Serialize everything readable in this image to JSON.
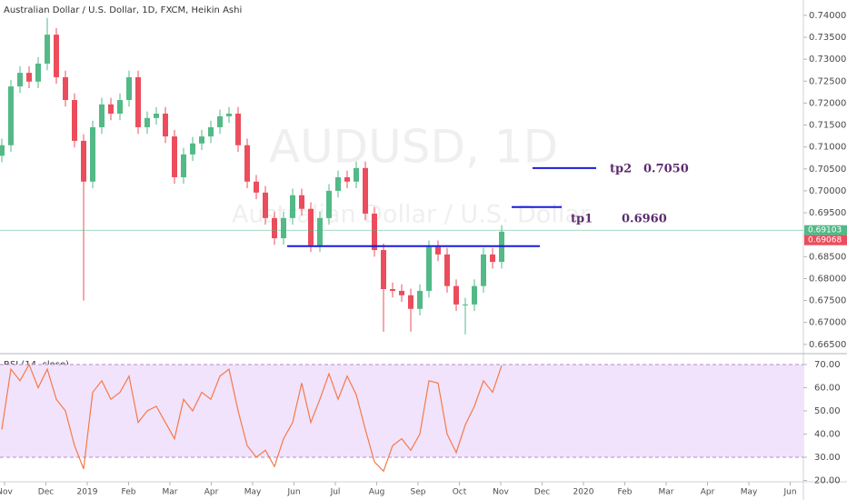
{
  "chart_data": [
    {
      "type": "candlestick",
      "title": "Australian Dollar / U.S. Dollar, 1D, FXCM, Heikin Ashi",
      "watermark": "AUDUSD, 1D",
      "watermark_subtitle": "Australian Dollar / U.S. Dollar",
      "up_color": "#53b987",
      "down_color": "#eb4d5c",
      "ylim": [
        0.6631,
        0.7435
      ],
      "yticks": [
        {
          "value": 0.665,
          "label": "0.66500"
        },
        {
          "value": 0.67,
          "label": "0.67000"
        },
        {
          "value": 0.675,
          "label": "0.67500"
        },
        {
          "value": 0.68,
          "label": "0.68000"
        },
        {
          "value": 0.685,
          "label": "0.68500"
        },
        {
          "value": 0.69,
          "label": "0.69000"
        },
        {
          "value": 0.695,
          "label": "0.69500"
        },
        {
          "value": 0.7,
          "label": "0.70000"
        },
        {
          "value": 0.705,
          "label": "0.70500"
        },
        {
          "value": 0.71,
          "label": "0.71000"
        },
        {
          "value": 0.715,
          "label": "0.71500"
        },
        {
          "value": 0.72,
          "label": "0.72000"
        },
        {
          "value": 0.725,
          "label": "0.72500"
        },
        {
          "value": 0.73,
          "label": "0.73000"
        },
        {
          "value": 0.735,
          "label": "0.73500"
        },
        {
          "value": 0.74,
          "label": "0.74000"
        }
      ],
      "open": [
        0.708,
        0.7104,
        0.7238,
        0.7269,
        0.7249,
        0.729,
        0.7356,
        0.7259,
        0.7207,
        0.7114,
        0.7021,
        0.7145,
        0.7197,
        0.7176,
        0.7207,
        0.7259,
        0.7145,
        0.7166,
        0.7176,
        0.7124,
        0.7031,
        0.7083,
        0.7108,
        0.7124,
        0.7145,
        0.717,
        0.7176,
        0.7104,
        0.7021,
        0.6996,
        0.6938,
        0.6892,
        0.6938,
        0.699,
        0.6959,
        0.6876,
        0.6938,
        0.7,
        0.7031,
        0.7021,
        0.7052,
        0.6948,
        0.6865,
        0.6776,
        0.6772,
        0.6762,
        0.6731,
        0.6772,
        0.6872,
        0.6855,
        0.6783,
        0.6741,
        0.6741,
        0.6783,
        0.6855,
        0.6838
      ],
      "high": [
        0.7119,
        0.7253,
        0.7284,
        0.7284,
        0.7305,
        0.7394,
        0.7371,
        0.7274,
        0.7222,
        0.7129,
        0.716,
        0.7212,
        0.7212,
        0.7222,
        0.7274,
        0.7274,
        0.7181,
        0.7191,
        0.7191,
        0.7139,
        0.7098,
        0.7123,
        0.7139,
        0.716,
        0.7185,
        0.7191,
        0.7191,
        0.7119,
        0.7036,
        0.7011,
        0.6953,
        0.6953,
        0.7005,
        0.7005,
        0.6974,
        0.6953,
        0.7015,
        0.7046,
        0.7046,
        0.7067,
        0.7067,
        0.6963,
        0.688,
        0.6791,
        0.6787,
        0.6777,
        0.6787,
        0.6887,
        0.6887,
        0.687,
        0.6798,
        0.6756,
        0.6798,
        0.687,
        0.687,
        0.6922
      ],
      "low": [
        0.7065,
        0.7089,
        0.7223,
        0.7234,
        0.7234,
        0.7275,
        0.7244,
        0.7192,
        0.7099,
        0.675,
        0.7006,
        0.713,
        0.7161,
        0.7161,
        0.7192,
        0.713,
        0.713,
        0.7151,
        0.7109,
        0.7016,
        0.7016,
        0.7068,
        0.7093,
        0.7109,
        0.713,
        0.7155,
        0.7089,
        0.7006,
        0.6981,
        0.6923,
        0.6877,
        0.6877,
        0.6923,
        0.6944,
        0.6861,
        0.6861,
        0.6923,
        0.6985,
        0.7006,
        0.7006,
        0.6933,
        0.685,
        0.6679,
        0.6757,
        0.6747,
        0.6679,
        0.6716,
        0.6757,
        0.684,
        0.6768,
        0.6726,
        0.6673,
        0.6726,
        0.6768,
        0.6823,
        0.6823
      ],
      "close": [
        0.7104,
        0.7238,
        0.7269,
        0.7249,
        0.729,
        0.7356,
        0.7259,
        0.7207,
        0.7114,
        0.7021,
        0.7145,
        0.7197,
        0.7176,
        0.7207,
        0.7259,
        0.7145,
        0.7166,
        0.7176,
        0.7124,
        0.7031,
        0.7083,
        0.7108,
        0.7124,
        0.7145,
        0.717,
        0.7176,
        0.7104,
        0.7021,
        0.6996,
        0.6938,
        0.6892,
        0.6938,
        0.699,
        0.6959,
        0.6876,
        0.6938,
        0.7,
        0.7031,
        0.7021,
        0.7052,
        0.6948,
        0.6865,
        0.6776,
        0.6772,
        0.6762,
        0.6731,
        0.6772,
        0.6872,
        0.6855,
        0.6783,
        0.6741,
        0.6741,
        0.6783,
        0.6855,
        0.6838,
        0.6907
      ],
      "price_labels": [
        {
          "value": 0.69103,
          "color": "#53b987"
        },
        {
          "value": 0.69068,
          "color": "#eb4d5c"
        }
      ],
      "drawings": [
        {
          "value": 0.7052,
          "name": "tp2",
          "label": "0.7050",
          "color": "#1a1adb"
        },
        {
          "value": 0.6963,
          "name": "tp1",
          "label": "0.6960",
          "color": "#1a1adb"
        },
        {
          "value": 0.6874,
          "color": "#1a1adb"
        }
      ]
    },
    {
      "type": "line",
      "title": "RSI (14, close)",
      "color": "#f4794a",
      "band": [
        30,
        70
      ],
      "band_color": "#f1e3fb",
      "ylim": [
        19.4,
        74.3
      ],
      "yticks": [
        {
          "value": 20,
          "label": "20.00"
        },
        {
          "value": 30,
          "label": "30.00"
        },
        {
          "value": 40,
          "label": "40.00"
        },
        {
          "value": 50,
          "label": "50.00"
        },
        {
          "value": 60,
          "label": "60.00"
        },
        {
          "value": 70,
          "label": "70.00"
        }
      ],
      "values": [
        42,
        68,
        63,
        70,
        60,
        68,
        55,
        50,
        35,
        25,
        58,
        63,
        55,
        58,
        65,
        45,
        50,
        52,
        45,
        38,
        55,
        50,
        58,
        55,
        65,
        68,
        50,
        35,
        30,
        33,
        26,
        38,
        45,
        62,
        45,
        55,
        66,
        55,
        65,
        57,
        42,
        28,
        24,
        35,
        38,
        33,
        40,
        63,
        62,
        40,
        32,
        44,
        52,
        63,
        58,
        69.5
      ],
      "xticks": [
        "Nov",
        "Dec",
        "2019",
        "Feb",
        "Mar",
        "Apr",
        "May",
        "Jun",
        "Jul",
        "Aug",
        "Sep",
        "Oct",
        "Nov",
        "Dec",
        "2020",
        "Feb",
        "Mar",
        "Apr",
        "May",
        "Jun"
      ]
    }
  ]
}
